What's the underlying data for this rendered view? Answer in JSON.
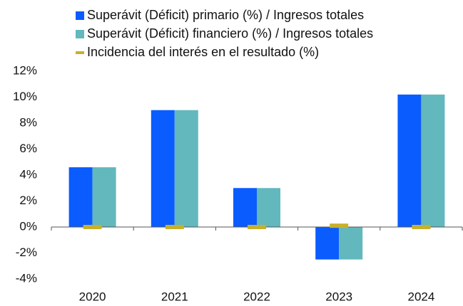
{
  "chart_data": {
    "type": "bar",
    "categories": [
      "2020",
      "2021",
      "2022",
      "2023",
      "2024"
    ],
    "series": [
      {
        "name": "Superávit (Déficit) primario (%) / Ingresos totales",
        "color": "#0a5cff",
        "kind": "bar",
        "values": [
          4.6,
          9.0,
          3.0,
          -2.5,
          10.2
        ]
      },
      {
        "name": "Superávit (Déficit) financiero (%) / Ingresos totales",
        "color": "#62b8bd",
        "kind": "bar",
        "values": [
          4.6,
          9.0,
          3.0,
          -2.5,
          10.2
        ]
      },
      {
        "name": "Incidencia del interés en el resultado (%)",
        "color": "#c8b02a",
        "kind": "dash",
        "values": [
          0.0,
          0.0,
          0.0,
          0.1,
          0.0
        ]
      }
    ],
    "ylim": [
      -4,
      12
    ],
    "yticks": [
      {
        "value": -4,
        "label": "-4%"
      },
      {
        "value": -2,
        "label": "-2%"
      },
      {
        "value": 0,
        "label": "0%"
      },
      {
        "value": 2,
        "label": "2%"
      },
      {
        "value": 4,
        "label": "4%"
      },
      {
        "value": 6,
        "label": "6%"
      },
      {
        "value": 8,
        "label": "8%"
      },
      {
        "value": 10,
        "label": "10%"
      },
      {
        "value": 12,
        "label": "12%"
      }
    ],
    "grid": false
  }
}
